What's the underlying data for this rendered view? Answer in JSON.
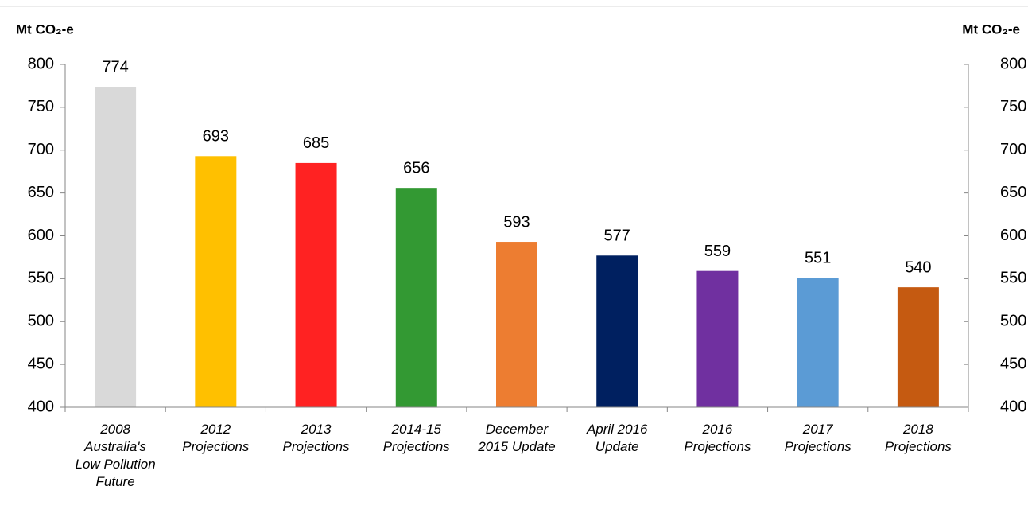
{
  "chart_data": {
    "type": "bar",
    "y_axis_label": "Mt CO₂-e",
    "y2_axis_label": "Mt CO₂-e",
    "categories": [
      "2008\nAustralia's\nLow Pollution\nFuture",
      "2012\nProjections",
      "2013\nProjections",
      "2014-15\nProjections",
      "December\n2015 Update",
      "April 2016\nUpdate",
      "2016\nProjections",
      "2017\nProjections",
      "2018\nProjections"
    ],
    "values": [
      774,
      693,
      685,
      656,
      593,
      577,
      559,
      551,
      540
    ],
    "colors": [
      "#d9d9d9",
      "#ffc000",
      "#ff2222",
      "#339933",
      "#ed7d31",
      "#002060",
      "#7030a0",
      "#5b9bd5",
      "#c55a11"
    ],
    "ylim": [
      400,
      800
    ],
    "yticks": [
      400,
      450,
      500,
      550,
      600,
      650,
      700,
      750,
      800
    ],
    "y2lim": [
      400,
      800
    ],
    "y2ticks": [
      400,
      450,
      500,
      550,
      600,
      650,
      700,
      750,
      800
    ]
  }
}
